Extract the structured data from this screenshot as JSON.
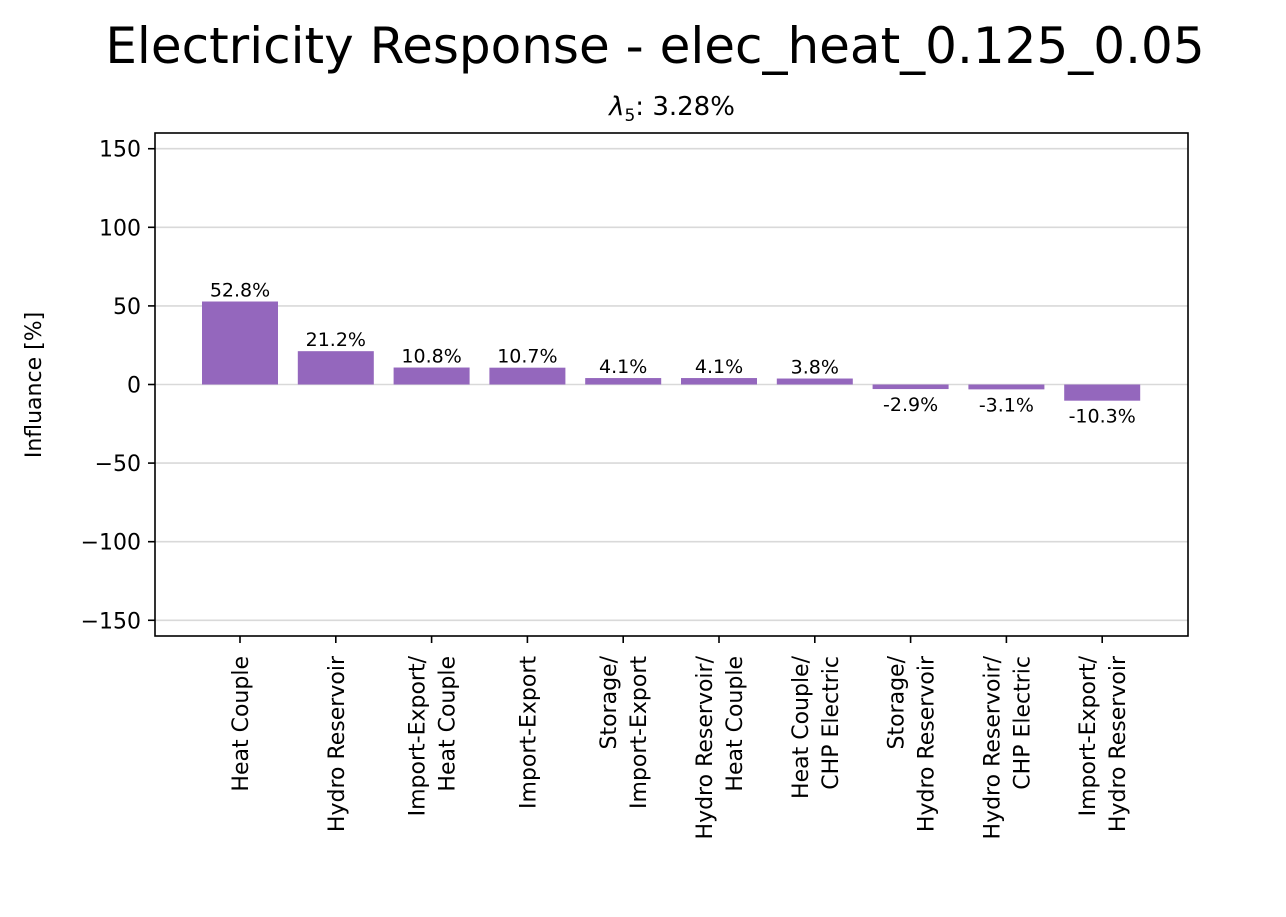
{
  "chart_data": {
    "type": "bar",
    "title": "Electricity Response - elec_heat_0.125_0.05",
    "subtitle": {
      "symbol": "λ",
      "subscript": "5",
      "text": ": 3.28%"
    },
    "xlabel": "",
    "ylabel": "Influance [%]",
    "ylim": [
      -160,
      160
    ],
    "yticks": [
      150,
      100,
      50,
      0,
      -50,
      -100,
      -150
    ],
    "ytick_labels": [
      "150",
      "100",
      "50",
      "0",
      "−50",
      "−100",
      "−150"
    ],
    "grid": "horizontal",
    "bar_color": "#9467bd",
    "categories": [
      [
        "Heat Couple"
      ],
      [
        "Hydro Reservoir"
      ],
      [
        "Import-Export/",
        "Heat Couple"
      ],
      [
        "Import-Export"
      ],
      [
        "Storage/",
        "Import-Export"
      ],
      [
        "Hydro Reservoir/",
        "Heat Couple"
      ],
      [
        "Heat Couple/",
        "CHP Electric"
      ],
      [
        "Storage/",
        "Hydro Reservoir"
      ],
      [
        "Hydro Reservoir/",
        "CHP Electric"
      ],
      [
        "Import-Export/",
        "Hydro Reservoir"
      ]
    ],
    "values": [
      52.8,
      21.2,
      10.8,
      10.7,
      4.1,
      4.1,
      3.8,
      -2.9,
      -3.1,
      -10.3
    ],
    "value_labels": [
      "52.8%",
      "21.2%",
      "10.8%",
      "10.7%",
      "4.1%",
      "4.1%",
      "3.8%",
      "-2.9%",
      "-3.1%",
      "-10.3%"
    ]
  }
}
